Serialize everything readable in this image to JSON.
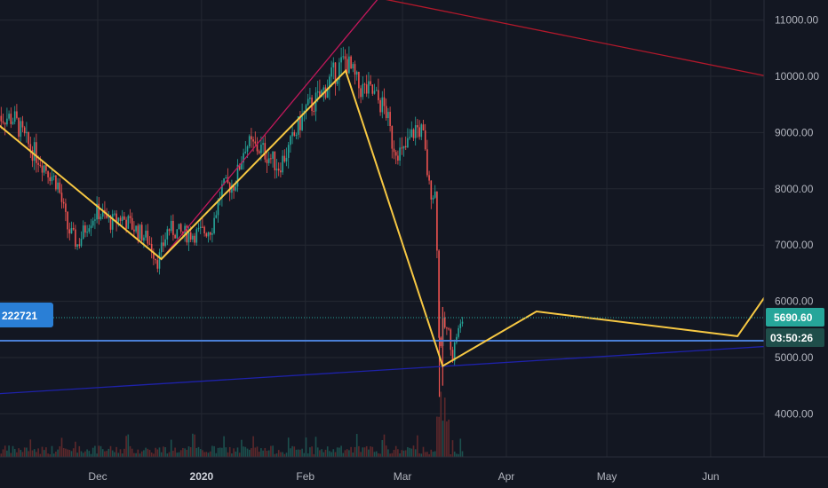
{
  "chart_data": {
    "type": "candlestick",
    "y_ticks": [
      "11000.00",
      "10000.00",
      "9000.00",
      "8000.00",
      "7000.00",
      "6000.00",
      "5000.00",
      "4000.00"
    ],
    "x_ticks": [
      "Dec",
      "2020",
      "Feb",
      "Mar",
      "Apr",
      "May",
      "Jun"
    ],
    "ylim": [
      3300,
      11450
    ],
    "grid": true,
    "price_series": [
      [
        "2019-11-01",
        9300
      ],
      [
        "2019-11-06",
        9250
      ],
      [
        "2019-11-10",
        8800
      ],
      [
        "2019-11-14",
        8500
      ],
      [
        "2019-11-19",
        8100
      ],
      [
        "2019-11-22",
        7300
      ],
      [
        "2019-11-25",
        7000
      ],
      [
        "2019-11-28",
        7400
      ],
      [
        "2019-12-01",
        7600
      ],
      [
        "2019-12-05",
        7400
      ],
      [
        "2019-12-08",
        7500
      ],
      [
        "2019-12-12",
        7300
      ],
      [
        "2019-12-16",
        7100
      ],
      [
        "2019-12-19",
        6700
      ],
      [
        "2019-12-22",
        7300
      ],
      [
        "2019-12-26",
        7200
      ],
      [
        "2019-12-31",
        7200
      ],
      [
        "2020-01-04",
        7300
      ],
      [
        "2020-01-07",
        8000
      ],
      [
        "2020-01-11",
        8100
      ],
      [
        "2020-01-14",
        8800
      ],
      [
        "2020-01-19",
        8700
      ],
      [
        "2020-01-24",
        8400
      ],
      [
        "2020-01-27",
        8700
      ],
      [
        "2020-02-01",
        9400
      ],
      [
        "2020-02-05",
        9600
      ],
      [
        "2020-02-09",
        10000
      ],
      [
        "2020-02-13",
        10300
      ],
      [
        "2020-02-17",
        9800
      ],
      [
        "2020-02-21",
        9700
      ],
      [
        "2020-02-25",
        9400
      ],
      [
        "2020-02-27",
        8800
      ],
      [
        "2020-03-01",
        8600
      ],
      [
        "2020-03-05",
        9100
      ],
      [
        "2020-03-07",
        9000
      ],
      [
        "2020-03-09",
        8000
      ],
      [
        "2020-03-11",
        7900
      ],
      [
        "2020-03-12",
        5000
      ],
      [
        "2020-03-13",
        5600
      ],
      [
        "2020-03-15",
        5400
      ],
      [
        "2020-03-16",
        5000
      ],
      [
        "2020-03-17",
        5400
      ],
      [
        "2020-03-18",
        5500
      ],
      [
        "2020-03-19",
        5690.6
      ]
    ],
    "projection_path": [
      [
        "2019-10-25",
        9500
      ],
      [
        "2019-12-20",
        6750
      ],
      [
        "2020-02-13",
        10100
      ],
      [
        "2020-03-13",
        4850
      ],
      [
        "2020-04-10",
        5820
      ],
      [
        "2020-06-09",
        5380
      ],
      [
        "2020-06-18",
        6150
      ]
    ],
    "trendlines": [
      {
        "color": "#c2185b",
        "points": [
          [
            "2019-12-20",
            6750
          ],
          [
            "2020-02-23",
            11400
          ]
        ]
      },
      {
        "color": "#b2182b",
        "points": [
          [
            "2020-02-18",
            11450
          ],
          [
            "2020-06-18",
            10000
          ]
        ]
      },
      {
        "color": "#1e22aa",
        "points": [
          [
            "2019-10-25",
            4330
          ],
          [
            "2020-06-18",
            5200
          ]
        ]
      },
      {
        "color": "#4a7fd6",
        "points": [
          [
            "2019-10-25",
            5300
          ],
          [
            "2020-06-18",
            5300
          ]
        ]
      }
    ],
    "last_price": "5690.60",
    "countdown": "03:50:26",
    "left_badge": "222721"
  },
  "colors": {
    "background": "#131722",
    "grid": "#242832",
    "axis_text": "#b2b5be",
    "candle_up": "#26a69a",
    "candle_down": "#ef5350",
    "projection": "#f7c843",
    "badge_blue": "#2a7fd6",
    "badge_teal": "#26a69a"
  }
}
